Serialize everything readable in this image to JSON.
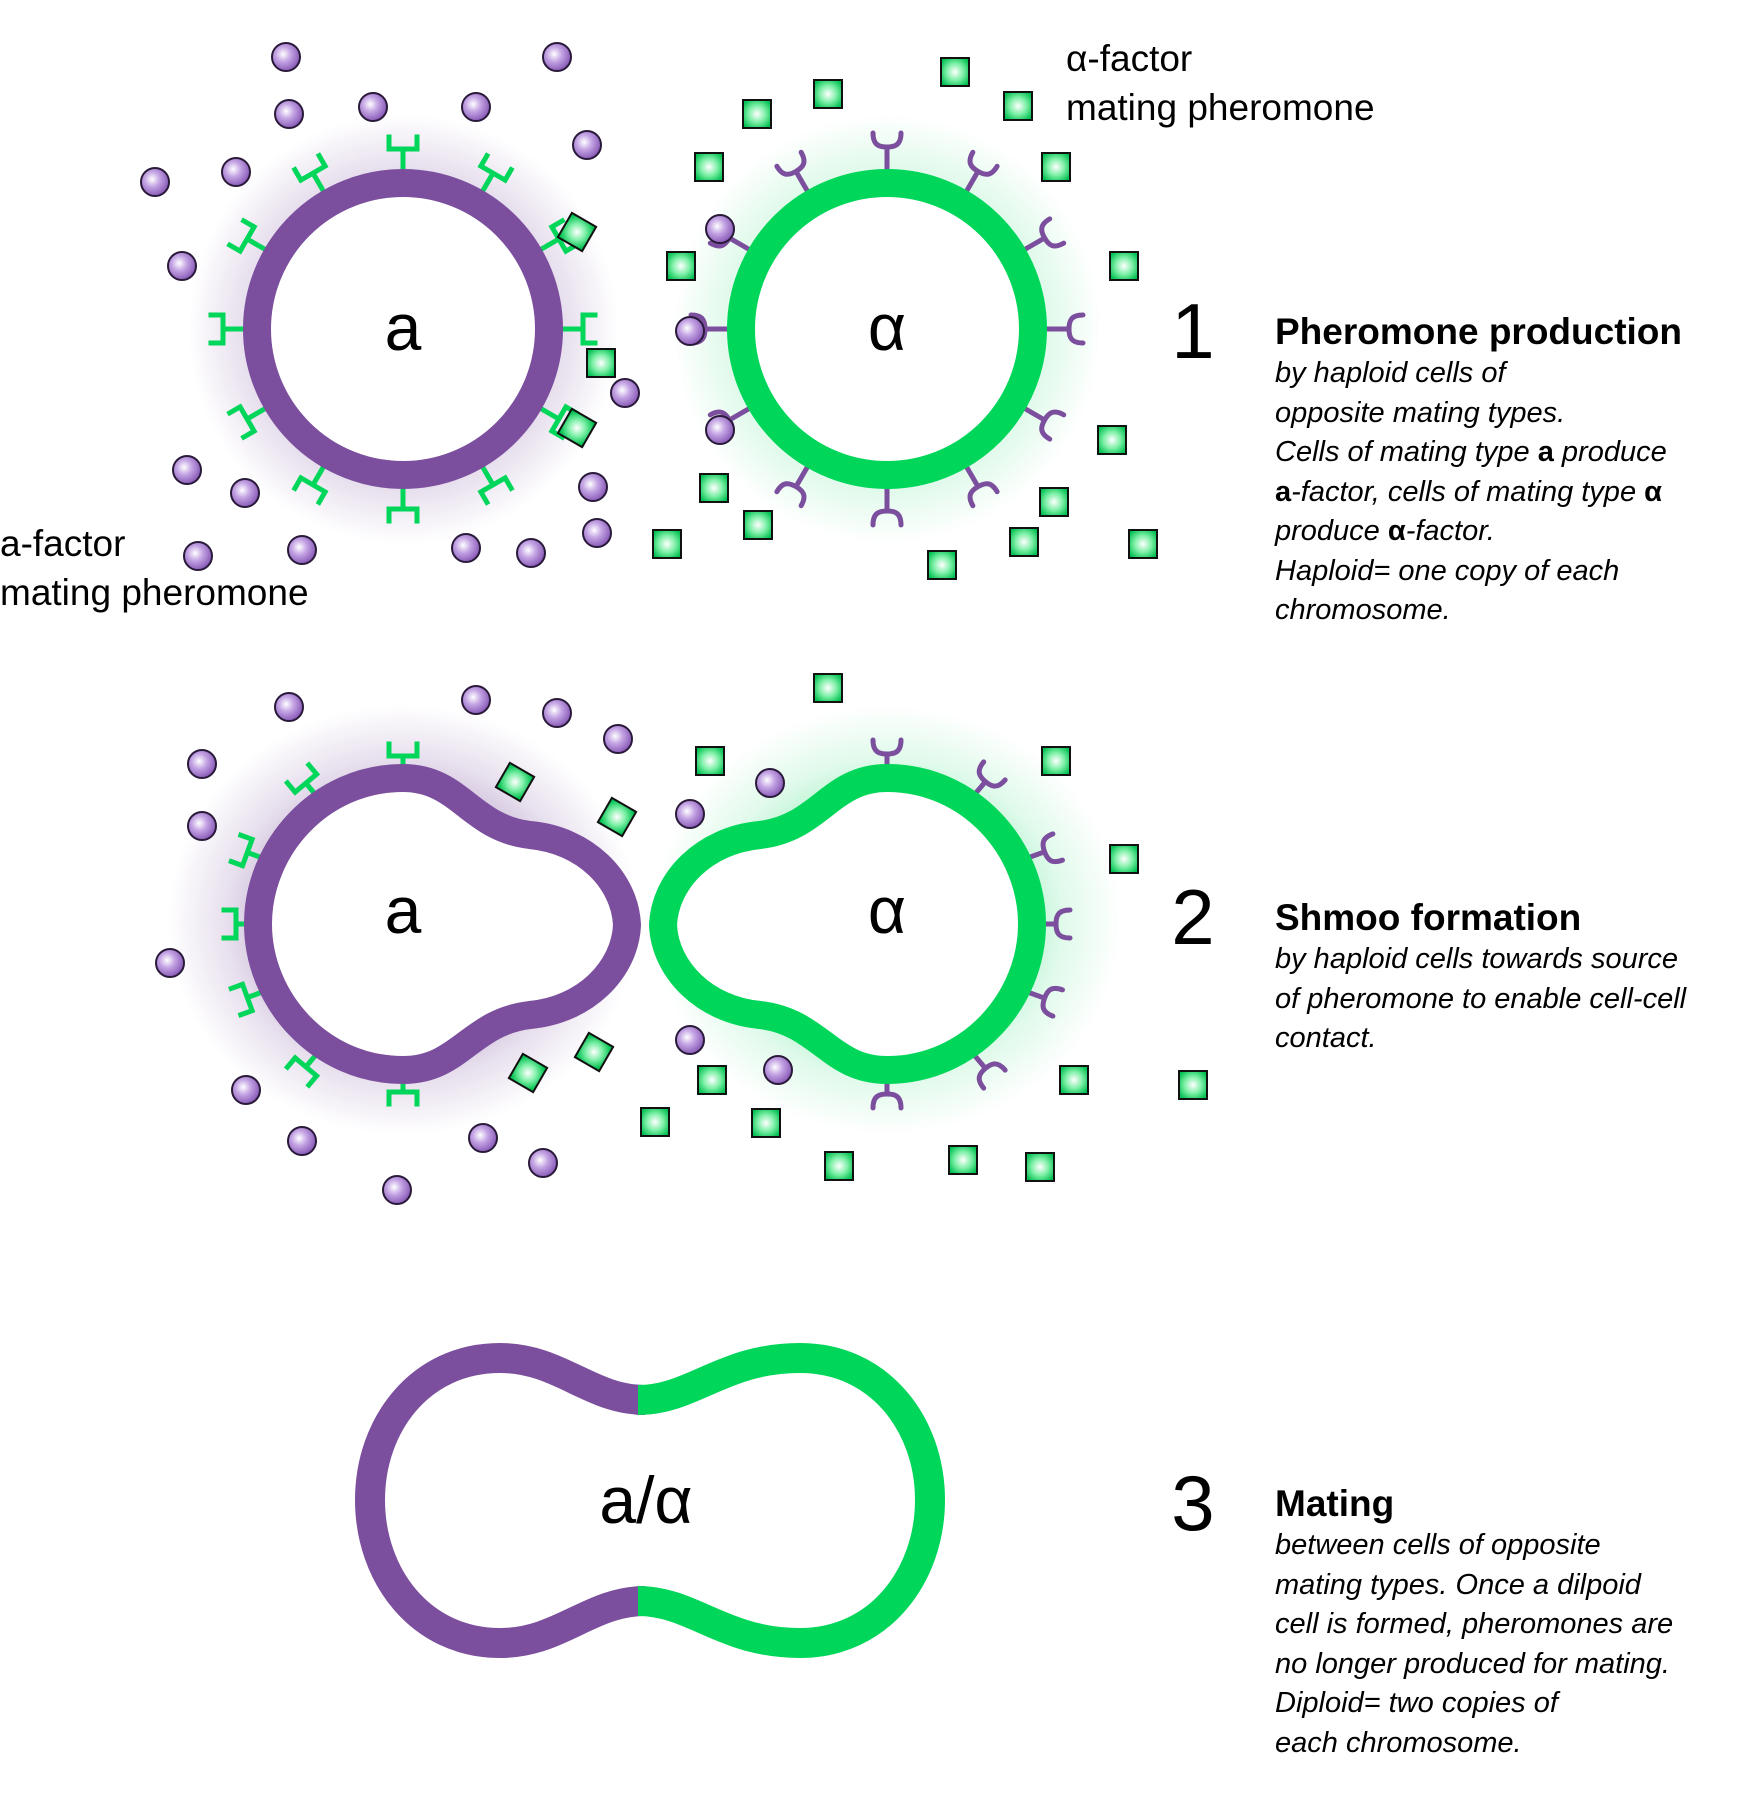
{
  "labels": {
    "cell_a": "a",
    "cell_alpha": "α",
    "diploid": "a/α",
    "alpha_factor": [
      "α-factor",
      "mating pheromone"
    ],
    "a_factor": [
      "a-factor",
      "mating pheromone"
    ]
  },
  "steps": [
    {
      "number": "1",
      "title": "Pheromone production",
      "lines": [
        "by haploid cells of",
        "opposite mating types.",
        "Cells of mating type **a** produce",
        "**a**-factor, cells of mating type **α**",
        "produce  **α**-factor.",
        "Haploid= one copy of each",
        "chromosome."
      ]
    },
    {
      "number": "2",
      "title": "Shmoo formation",
      "lines": [
        "by haploid cells towards source",
        "of pheromone to enable cell-cell",
        "contact."
      ]
    },
    {
      "number": "3",
      "title": "Mating",
      "lines": [
        "between cells of opposite",
        "mating types. Once a dilpoid",
        "cell is formed, pheromones are",
        "no longer produced for mating.",
        "Diploid= two copies of",
        "each chromosome."
      ]
    }
  ],
  "colors": {
    "a_cell": "#7b4f9d",
    "alpha_cell": "#00d65a",
    "a_pheromone": "#b08ad6",
    "alpha_pheromone": "#2fd874"
  }
}
